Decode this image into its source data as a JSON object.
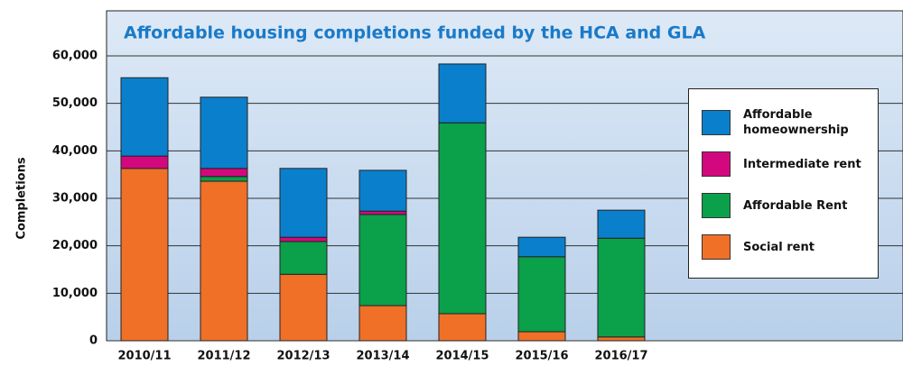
{
  "chart_data": {
    "type": "stacked_bar",
    "title": "Affordable housing completions funded by the HCA and GLA",
    "y_label": "Completions",
    "categories": [
      "2010/11",
      "2011/12",
      "2012/13",
      "2013/14",
      "2014/15",
      "2015/16",
      "2016/17"
    ],
    "series": [
      {
        "name": "Social rent",
        "color": "#f07028",
        "values": [
          36300,
          33600,
          14000,
          7400,
          5700,
          1900,
          800
        ]
      },
      {
        "name": "Affordable Rent",
        "color": "#0ba04a",
        "values": [
          0,
          1000,
          6900,
          19200,
          40200,
          15800,
          20800
        ]
      },
      {
        "name": "Intermediate rent",
        "color": "#d4087e",
        "values": [
          2600,
          1700,
          900,
          700,
          0,
          0,
          0
        ]
      },
      {
        "name": "Affordable homeownership",
        "color": "#0a80cc",
        "values": [
          16500,
          15000,
          14500,
          8600,
          12400,
          4100,
          5900
        ]
      }
    ],
    "ylim": [
      0,
      60000
    ],
    "yticks": [
      0,
      {
        "value": 10000,
        "label": "10,000"
      },
      {
        "value": 20000,
        "label": "20,000"
      },
      {
        "value": 30000,
        "label": "30,000"
      },
      {
        "value": 40000,
        "label": "40,000"
      },
      {
        "value": 50000,
        "label": "50,000"
      },
      {
        "value": 60000,
        "label": "60,000"
      }
    ],
    "grid": true,
    "legend": "right"
  }
}
